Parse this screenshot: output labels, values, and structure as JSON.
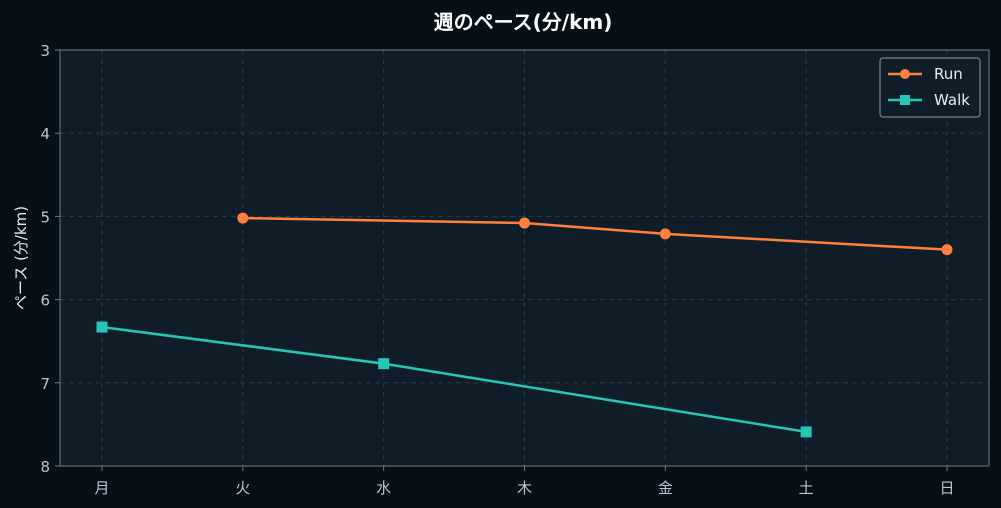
{
  "chart_data": {
    "type": "line",
    "title": "週のペース(分/km)",
    "xlabel": "",
    "ylabel": "ペース (分/km)",
    "categories": [
      "月",
      "火",
      "水",
      "木",
      "金",
      "土",
      "日"
    ],
    "ylim": [
      3,
      8
    ],
    "y_inverted": true,
    "yticks": [
      3,
      4,
      5,
      6,
      7,
      8
    ],
    "grid": true,
    "legend_position": "top-right",
    "series": [
      {
        "name": "Run",
        "color": "#ff7f3f",
        "marker": "circle",
        "values": [
          null,
          5.02,
          null,
          5.08,
          5.21,
          null,
          5.4
        ]
      },
      {
        "name": "Walk",
        "color": "#26c6b8",
        "marker": "square",
        "values": [
          6.33,
          null,
          6.77,
          null,
          null,
          7.59,
          null
        ]
      }
    ]
  },
  "colors": {
    "page_background": "#070f17",
    "plot_background": "#0f1d29",
    "grid": "#2a3a48",
    "axis": "#6b7d8c"
  }
}
